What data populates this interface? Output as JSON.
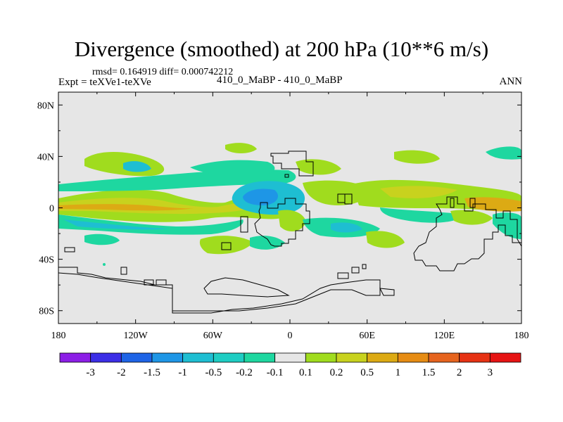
{
  "title": "Divergence (smoothed) at 200 hPa (10**6 m/s)",
  "stats": "rmsd= 0.164919 diff= 0.000742212",
  "experiment": "Expt = teXVe1-teXVe",
  "case_label": "410_0_MaBP - 410_0_MaBP",
  "season": "ANN",
  "map": {
    "lat_ticks": [
      "80N",
      "40N",
      "0",
      "40S",
      "80S"
    ],
    "lon_ticks": [
      "180",
      "120W",
      "60W",
      "0",
      "60E",
      "120E",
      "180"
    ],
    "lat_values": [
      80,
      40,
      0,
      -40,
      -80
    ],
    "lon_values": [
      -180,
      -120,
      -60,
      0,
      60,
      120,
      180
    ],
    "lat_range": [
      -90,
      90
    ],
    "lon_range": [
      -180,
      180
    ],
    "background_color": "#e6e6e6"
  },
  "colorbar": {
    "labels": [
      "-3",
      "-2",
      "-1.5",
      "-1",
      "-0.5",
      "-0.2",
      "-0.1",
      "0.1",
      "0.2",
      "0.5",
      "1",
      "1.5",
      "2",
      "3"
    ],
    "colors": [
      "#8c1ee6",
      "#3c2ee6",
      "#1e64e6",
      "#1e96e6",
      "#1ebed2",
      "#1ecdc3",
      "#1ed7a0",
      "#e6e6e6",
      "#a0dc1e",
      "#c8d21e",
      "#dcaa14",
      "#e68c14",
      "#e6641e",
      "#e63214",
      "#e61414"
    ]
  }
}
